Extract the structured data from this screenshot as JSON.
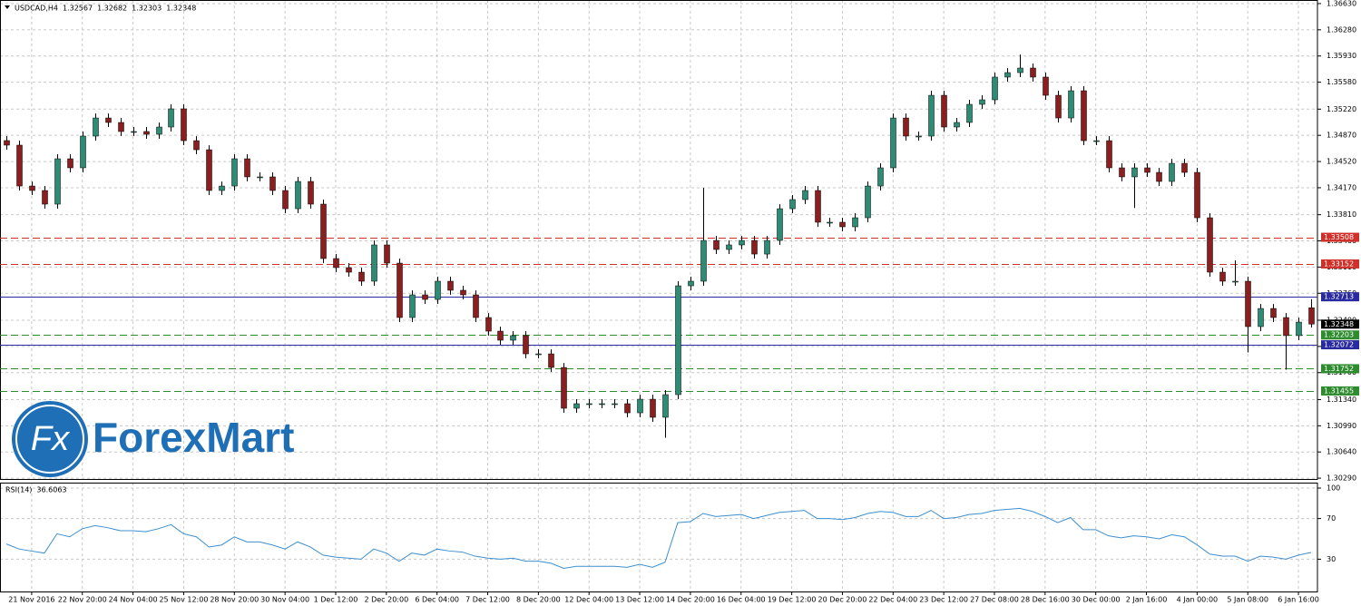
{
  "logo": {
    "icon": "Fx",
    "text": "ForexMart"
  },
  "chart_data": [
    {
      "type": "candlestick",
      "title": "USDCAD,H4",
      "categories": [
        null,
        null,
        "21 Nov 2016",
        null,
        null,
        null,
        "22 Nov 20:00",
        null,
        null,
        null,
        "24 Nov 04:00",
        null,
        null,
        null,
        "25 Nov 12:00",
        null,
        null,
        null,
        "28 Nov 20:00",
        null,
        null,
        null,
        "30 Nov 04:00",
        null,
        null,
        null,
        "1 Dec 12:00",
        null,
        null,
        null,
        "2 Dec 20:00",
        null,
        null,
        null,
        "6 Dec 04:00",
        null,
        null,
        null,
        "7 Dec 12:00",
        null,
        null,
        null,
        "8 Dec 20:00",
        null,
        null,
        null,
        "12 Dec 04:00",
        null,
        null,
        null,
        "13 Dec 12:00",
        null,
        null,
        null,
        "14 Dec 20:00",
        null,
        null,
        null,
        "16 Dec 04:00",
        null,
        null,
        null,
        "19 Dec 12:00",
        null,
        null,
        null,
        "20 Dec 20:00",
        null,
        null,
        null,
        "22 Dec 04:00",
        null,
        null,
        null,
        "23 Dec 12:00",
        null,
        null,
        null,
        "27 Dec 08:00",
        null,
        null,
        null,
        "28 Dec 16:00",
        null,
        null,
        null,
        "30 Dec 00:00",
        null,
        null,
        null,
        "2 Jan 16:00",
        null,
        null,
        null,
        "4 Jan 00:00",
        null,
        null,
        null,
        "5 Jan 08:00",
        null,
        null,
        null,
        "6 Jan 16:00",
        null
      ],
      "open": [
        1.348,
        1.34739,
        1.34193,
        1.34133,
        1.33951,
        1.34557,
        1.34436,
        1.3486,
        1.35102,
        1.35042,
        1.34921,
        1.34921,
        1.34884,
        1.34981,
        1.35224,
        1.34799,
        1.34678,
        1.34133,
        1.34193,
        1.34557,
        1.34315,
        1.34315,
        1.34133,
        1.3389,
        1.34254,
        1.33951,
        1.33224,
        1.33103,
        1.33042,
        1.32921,
        1.33406,
        1.33163,
        1.32436,
        1.32739,
        1.32678,
        1.32921,
        1.328,
        1.32739,
        1.32436,
        1.32254,
        1.32133,
        1.32194,
        1.31951,
        1.31951,
        1.31769,
        1.31224,
        1.31285,
        1.31285,
        1.31285,
        1.31285,
        1.31163,
        1.31345,
        1.31103,
        1.31406,
        1.3286,
        1.32921,
        1.33466,
        1.33345,
        1.33406,
        1.33466,
        1.33284,
        1.33466,
        1.3389,
        1.34012,
        1.34133,
        1.33709,
        1.33709,
        1.33648,
        1.33769,
        1.34193,
        1.34436,
        1.35102,
        1.3486,
        1.3486,
        1.35405,
        1.34981,
        1.35042,
        1.35284,
        1.35345,
        1.35648,
        1.35708,
        1.35769,
        1.35648,
        1.35405,
        1.35102,
        1.35466,
        1.34799,
        1.34799,
        1.34436,
        1.34315,
        1.34436,
        1.34375,
        1.34254,
        1.34496,
        1.34375,
        1.33769,
        1.33042,
        1.32921,
        1.32921,
        1.32315,
        1.32557,
        1.32436,
        1.32194,
        1.32567
      ],
      "high": [
        1.3486,
        1.34799,
        1.34253,
        1.34193,
        1.34617,
        1.34617,
        1.3492,
        1.35162,
        1.35162,
        1.35102,
        1.34981,
        1.34981,
        1.35041,
        1.35284,
        1.35284,
        1.34859,
        1.34738,
        1.34253,
        1.34617,
        1.34617,
        1.34375,
        1.34375,
        1.34193,
        1.34314,
        1.34314,
        1.34011,
        1.33284,
        1.33163,
        1.33102,
        1.33466,
        1.33466,
        1.33223,
        1.32799,
        1.32799,
        1.32981,
        1.32981,
        1.3286,
        1.32799,
        1.32496,
        1.32314,
        1.32254,
        1.32254,
        1.32011,
        1.32011,
        1.31829,
        1.31345,
        1.31345,
        1.31345,
        1.31345,
        1.31345,
        1.31405,
        1.31405,
        1.31466,
        1.3292,
        1.32981,
        1.3417,
        1.33526,
        1.33466,
        1.33526,
        1.33526,
        1.33526,
        1.3395,
        1.34072,
        1.34193,
        1.34193,
        1.33769,
        1.33769,
        1.33829,
        1.34253,
        1.34496,
        1.35162,
        1.35162,
        1.3492,
        1.35465,
        1.35465,
        1.35102,
        1.35344,
        1.35405,
        1.35708,
        1.35768,
        1.3595,
        1.35829,
        1.35708,
        1.35465,
        1.35526,
        1.35526,
        1.34859,
        1.34859,
        1.34496,
        1.34496,
        1.34496,
        1.34435,
        1.34556,
        1.34556,
        1.34435,
        1.33829,
        1.33102,
        1.332,
        1.32981,
        1.32617,
        1.32617,
        1.32496,
        1.32435,
        1.32682
      ],
      "low": [
        1.34679,
        1.34133,
        1.34073,
        1.33891,
        1.33891,
        1.34376,
        1.34376,
        1.348,
        1.34982,
        1.34861,
        1.34861,
        1.34824,
        1.34824,
        1.34921,
        1.34739,
        1.34618,
        1.34073,
        1.34073,
        1.34133,
        1.34255,
        1.34255,
        1.34073,
        1.3383,
        1.3383,
        1.33891,
        1.33164,
        1.33043,
        1.32982,
        1.32861,
        1.32861,
        1.33103,
        1.32376,
        1.32376,
        1.32618,
        1.32618,
        1.3274,
        1.32679,
        1.32376,
        1.32194,
        1.32073,
        1.32073,
        1.31891,
        1.31891,
        1.31709,
        1.31164,
        1.31164,
        1.31225,
        1.31225,
        1.31225,
        1.31103,
        1.31103,
        1.31043,
        1.3083,
        1.31346,
        1.328,
        1.32861,
        1.33285,
        1.33285,
        1.33346,
        1.33224,
        1.33224,
        1.33406,
        1.3383,
        1.33952,
        1.33649,
        1.33649,
        1.33588,
        1.33588,
        1.33709,
        1.34133,
        1.34376,
        1.348,
        1.348,
        1.348,
        1.34921,
        1.34921,
        1.34982,
        1.35224,
        1.35285,
        1.35588,
        1.35648,
        1.35588,
        1.35345,
        1.35042,
        1.35042,
        1.34739,
        1.34739,
        1.34376,
        1.34255,
        1.339,
        1.34315,
        1.34194,
        1.34194,
        1.34315,
        1.33709,
        1.32982,
        1.32861,
        1.32861,
        1.3197,
        1.32255,
        1.32376,
        1.3174,
        1.32134,
        1.32303
      ],
      "close": [
        1.34739,
        1.34193,
        1.34133,
        1.33951,
        1.34557,
        1.34436,
        1.3486,
        1.35102,
        1.35042,
        1.34921,
        1.34921,
        1.34884,
        1.34981,
        1.35224,
        1.34799,
        1.34678,
        1.34133,
        1.34193,
        1.34557,
        1.34315,
        1.34315,
        1.34133,
        1.3389,
        1.34254,
        1.33951,
        1.33224,
        1.33103,
        1.33042,
        1.32921,
        1.33406,
        1.33163,
        1.32436,
        1.32739,
        1.32678,
        1.32921,
        1.328,
        1.32739,
        1.32436,
        1.32254,
        1.32133,
        1.32194,
        1.31951,
        1.31951,
        1.31769,
        1.31224,
        1.31285,
        1.31285,
        1.31285,
        1.31285,
        1.31163,
        1.31345,
        1.31103,
        1.31406,
        1.3286,
        1.32921,
        1.33466,
        1.33345,
        1.33406,
        1.33466,
        1.33284,
        1.33466,
        1.3389,
        1.34012,
        1.34133,
        1.33709,
        1.33709,
        1.33648,
        1.33769,
        1.34193,
        1.34436,
        1.35102,
        1.3486,
        1.3486,
        1.35405,
        1.34981,
        1.35042,
        1.35284,
        1.35345,
        1.35648,
        1.35708,
        1.35769,
        1.35648,
        1.35405,
        1.35102,
        1.35466,
        1.34799,
        1.34799,
        1.34436,
        1.34315,
        1.34436,
        1.34375,
        1.34254,
        1.34496,
        1.34375,
        1.33769,
        1.33042,
        1.32921,
        1.32921,
        1.32315,
        1.32557,
        1.32436,
        1.32194,
        1.32375,
        1.32348
      ],
      "up_color": "#2e8b74",
      "down_color": "#8b1e1e",
      "ylim": [
        1.30279,
        1.36678
      ],
      "yticks": [
        {
          "value": 1.3663,
          "label": "1.36630"
        },
        {
          "value": 1.3628,
          "label": "1.36280"
        },
        {
          "value": 1.3593,
          "label": "1.35930"
        },
        {
          "value": 1.3558,
          "label": "1.35580"
        },
        {
          "value": 1.3522,
          "label": "1.35220"
        },
        {
          "value": 1.3487,
          "label": "1.34870"
        },
        {
          "value": 1.3452,
          "label": "1.34520"
        },
        {
          "value": 1.3417,
          "label": "1.34170"
        },
        {
          "value": 1.3381,
          "label": "1.33810"
        },
        {
          "value": 1.3346,
          "label": "1.33460"
        },
        {
          "value": 1.3311,
          "label": "1.33110"
        },
        {
          "value": 1.3276,
          "label": "1.32760"
        },
        {
          "value": 1.324,
          "label": "1.32400"
        },
        {
          "value": 1.3205,
          "label": "1.32050"
        },
        {
          "value": 1.317,
          "label": "1.31700"
        },
        {
          "value": 1.3134,
          "label": "1.31340"
        },
        {
          "value": 1.3099,
          "label": "1.30990"
        },
        {
          "value": 1.3064,
          "label": "1.30640"
        },
        {
          "value": 1.3029,
          "label": "1.30290"
        }
      ],
      "grid": true,
      "levels": [
        {
          "value": 1.33508,
          "color": "#d0302a",
          "style": "dashed"
        },
        {
          "value": 1.33152,
          "color": "#d0302a",
          "style": "dashed"
        },
        {
          "value": 1.32713,
          "color": "#2a2aa0",
          "style": "solid"
        },
        {
          "value": 1.32203,
          "color": "#2e8b2e",
          "style": "dashed"
        },
        {
          "value": 1.32072,
          "color": "#2a2aa0",
          "style": "solid"
        },
        {
          "value": 1.31752,
          "color": "#2e8b2e",
          "style": "dashed"
        },
        {
          "value": 1.31455,
          "color": "#2e8b2e",
          "style": "dashed"
        }
      ]
    },
    {
      "type": "line",
      "title": "RSI(14)",
      "series": [
        {
          "color": "#3d8fd1",
          "values": [
            45,
            40,
            38,
            36,
            55,
            52,
            60,
            63,
            61,
            58,
            58,
            57,
            60,
            64,
            55,
            52,
            42,
            44,
            52,
            47,
            47,
            44,
            40,
            47,
            42,
            34,
            32,
            31,
            30,
            40,
            36,
            28,
            36,
            34,
            40,
            38,
            37,
            33,
            31,
            30,
            31,
            28,
            28,
            26,
            21,
            23,
            23,
            23,
            23,
            22,
            25,
            22,
            27,
            66,
            67,
            75,
            72,
            73,
            74,
            70,
            73,
            76,
            77,
            78,
            70,
            70,
            69,
            71,
            75,
            77,
            76,
            72,
            72,
            78,
            70,
            71,
            74,
            75,
            78,
            79,
            80,
            77,
            72,
            66,
            71,
            59,
            59,
            53,
            51,
            53,
            52,
            50,
            54,
            52,
            44,
            35,
            33,
            33,
            28,
            33,
            32,
            30,
            34,
            36.6063
          ]
        }
      ],
      "ylim": [
        0,
        100
      ],
      "yticks": [
        100,
        70,
        30
      ],
      "grid": true
    }
  ]
}
